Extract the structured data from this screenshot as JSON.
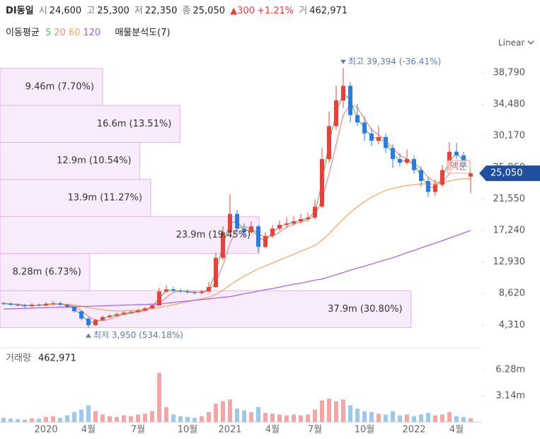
{
  "header": {
    "name": "DI동일",
    "fields": [
      {
        "label": "시",
        "value": "24,600"
      },
      {
        "label": "고",
        "value": "25,300"
      },
      {
        "label": "저",
        "value": "22,350"
      },
      {
        "label": "종",
        "value": "25,050"
      }
    ],
    "change": "▲300",
    "change_pct": "+1.21%",
    "volume": {
      "label": "거",
      "value": "462,971"
    }
  },
  "chart_data": {
    "type": "candlestick",
    "price_scale": "Linear",
    "ma_label": "이동평균",
    "profile_label": "매물분석도(7)",
    "high_note": "최고 39,394 (-36.41%)",
    "low_note": "최저 3,950 (534.18%)",
    "annotation": "액분",
    "up_color": "#e8413c",
    "down_color": "#2c7be0",
    "categories": [
      null,
      null,
      null,
      null,
      null,
      null,
      "2020",
      null,
      null,
      null,
      null,
      null,
      "4월",
      null,
      null,
      null,
      null,
      null,
      null,
      "7월",
      null,
      null,
      null,
      null,
      null,
      null,
      "10월",
      null,
      null,
      null,
      null,
      null,
      "2021",
      null,
      null,
      null,
      null,
      null,
      "4월",
      null,
      null,
      null,
      null,
      null,
      "7월",
      null,
      null,
      null,
      null,
      null,
      null,
      "10월",
      null,
      null,
      null,
      null,
      null,
      null,
      "2022",
      null,
      null,
      null,
      null,
      null,
      "4월",
      null,
      null
    ],
    "ohlc": [
      [
        7300,
        7500,
        7000,
        7200
      ],
      [
        7200,
        7400,
        6950,
        7100
      ],
      [
        7100,
        7300,
        6850,
        7000
      ],
      [
        7000,
        7200,
        6700,
        6900
      ],
      [
        6900,
        7300,
        6800,
        7100
      ],
      [
        7100,
        7250,
        6850,
        7000
      ],
      [
        7000,
        7450,
        6900,
        7200
      ],
      [
        7200,
        7600,
        7050,
        7300
      ],
      [
        7300,
        7500,
        6950,
        7100
      ],
      [
        7100,
        7200,
        6600,
        6800
      ],
      [
        6800,
        6900,
        6000,
        6200
      ],
      [
        6200,
        6300,
        5000,
        5200
      ],
      [
        5200,
        5400,
        3950,
        4300
      ],
      [
        4300,
        5200,
        4200,
        5000
      ],
      [
        5000,
        5600,
        4900,
        5400
      ],
      [
        5400,
        5800,
        5300,
        5600
      ],
      [
        5600,
        6000,
        5500,
        5800
      ],
      [
        5800,
        6200,
        5700,
        6000
      ],
      [
        6000,
        6300,
        5850,
        6100
      ],
      [
        6100,
        6500,
        6000,
        6300
      ],
      [
        6300,
        6800,
        6200,
        6600
      ],
      [
        6600,
        7200,
        6500,
        7000
      ],
      [
        7000,
        9400,
        6900,
        8900
      ],
      [
        8900,
        9700,
        8700,
        9200
      ],
      [
        9200,
        9500,
        8800,
        9000
      ],
      [
        9000,
        9300,
        8700,
        8900
      ],
      [
        8900,
        9200,
        8600,
        8800
      ],
      [
        8800,
        9000,
        8500,
        8700
      ],
      [
        8700,
        9100,
        8600,
        8900
      ],
      [
        8900,
        10200,
        8800,
        9500
      ],
      [
        9500,
        14200,
        9400,
        13500
      ],
      [
        13500,
        17800,
        13200,
        17000
      ],
      [
        17000,
        22200,
        16800,
        19500
      ],
      [
        19500,
        20000,
        17000,
        17500
      ],
      [
        17500,
        18200,
        16500,
        17000
      ],
      [
        17000,
        18500,
        16800,
        17800
      ],
      [
        17800,
        18000,
        14200,
        15000
      ],
      [
        15000,
        17000,
        14800,
        16500
      ],
      [
        16500,
        18000,
        16200,
        17500
      ],
      [
        17500,
        18600,
        17200,
        18000
      ],
      [
        18000,
        19000,
        17600,
        18200
      ],
      [
        18200,
        19200,
        17900,
        18500
      ],
      [
        18500,
        19500,
        18200,
        18800
      ],
      [
        18800,
        19700,
        18500,
        19000
      ],
      [
        19000,
        21500,
        18700,
        20500
      ],
      [
        20500,
        28500,
        20300,
        27000
      ],
      [
        27000,
        33500,
        26500,
        31500
      ],
      [
        31500,
        37000,
        31000,
        35000
      ],
      [
        35000,
        39394,
        34000,
        37000
      ],
      [
        37000,
        37500,
        32000,
        33000
      ],
      [
        33000,
        34500,
        31500,
        32000
      ],
      [
        32000,
        32800,
        29500,
        30500
      ],
      [
        30500,
        31200,
        28800,
        29500
      ],
      [
        29500,
        31500,
        29000,
        30000
      ],
      [
        30000,
        30500,
        27800,
        28500
      ],
      [
        28500,
        29000,
        25800,
        27000
      ],
      [
        27000,
        27800,
        26000,
        26500
      ],
      [
        26500,
        28300,
        26200,
        27000
      ],
      [
        27000,
        27500,
        25000,
        25500
      ],
      [
        25500,
        26000,
        23200,
        24000
      ],
      [
        24000,
        24500,
        21800,
        22500
      ],
      [
        22500,
        24200,
        22000,
        23500
      ],
      [
        23500,
        26200,
        23200,
        25500
      ],
      [
        25500,
        29300,
        25200,
        28000
      ],
      [
        28000,
        29200,
        27000,
        27500
      ],
      [
        27500,
        28000,
        25500,
        26000
      ],
      [
        24600,
        25300,
        22350,
        25050
      ]
    ],
    "ylim": [
      1400,
      41000
    ],
    "yticks": [
      {
        "value": 4310,
        "label": "4,310"
      },
      {
        "value": 8620,
        "label": "8,620"
      },
      {
        "value": 12930,
        "label": "12,930"
      },
      {
        "value": 17240,
        "label": "17,240"
      },
      {
        "value": 21550,
        "label": "21,550"
      },
      {
        "value": 25860,
        "label": "25,860"
      },
      {
        "value": 30170,
        "label": "30,170"
      },
      {
        "value": 34480,
        "label": "34,480"
      },
      {
        "value": 38790,
        "label": "38,790"
      }
    ],
    "series": [
      {
        "name": "5",
        "color": "#5cbf5c",
        "values": [
          7250,
          7150,
          7050,
          6950,
          7000,
          7050,
          7100,
          7250,
          7200,
          6950,
          6500,
          5700,
          4750,
          4650,
          5200,
          5500,
          5700,
          5900,
          6050,
          6200,
          6450,
          6800,
          7950,
          9050,
          9100,
          8950,
          8850,
          8750,
          8800,
          9200,
          11500,
          15250,
          18250,
          18500,
          17250,
          17400,
          16400,
          15750,
          17000,
          17750,
          18100,
          18350,
          18650,
          18900,
          19750,
          23750,
          29250,
          33250,
          36000,
          35000,
          32500,
          31250,
          30000,
          29750,
          29250,
          27750,
          26750,
          26750,
          26250,
          24750,
          23250,
          23000,
          24500,
          26750,
          27750,
          26750,
          25500
        ]
      },
      {
        "name": "20",
        "color": "#f08a84",
        "values": [
          7300,
          7250,
          7150,
          7050,
          7000,
          7000,
          7050,
          7150,
          7200,
          7100,
          6850,
          6300,
          5500,
          5000,
          4900,
          5150,
          5500,
          5750,
          5950,
          6100,
          6300,
          6600,
          7300,
          8100,
          8800,
          9000,
          8950,
          8800,
          8800,
          9000,
          10200,
          12500,
          15500,
          17500,
          17800,
          17500,
          16800,
          16300,
          16500,
          17000,
          17700,
          18100,
          18400,
          18700,
          19300,
          21500,
          25000,
          29000,
          33000,
          34500,
          34000,
          32500,
          31000,
          30300,
          29500,
          28500,
          27500,
          27000,
          26500,
          25600,
          24500,
          23800,
          23800,
          25000,
          26500,
          27000,
          26500
        ]
      },
      {
        "name": "60",
        "color": "#f5a55a",
        "values": [
          null,
          null,
          null,
          null,
          null,
          null,
          7200,
          7200,
          7200,
          7150,
          7050,
          6900,
          6700,
          6550,
          6400,
          6300,
          6250,
          6250,
          6300,
          6350,
          6450,
          6550,
          6700,
          6900,
          7100,
          7300,
          7500,
          7700,
          7900,
          8100,
          8500,
          9100,
          9800,
          10400,
          11000,
          11500,
          12000,
          12400,
          12800,
          13200,
          13600,
          14000,
          14400,
          14800,
          15200,
          15900,
          16800,
          17800,
          18800,
          19700,
          20500,
          21200,
          21800,
          22300,
          22700,
          23000,
          23200,
          23400,
          23500,
          23600,
          23600,
          23600,
          23700,
          24000,
          24200,
          24300,
          24300
        ]
      },
      {
        "name": "120",
        "color": "#a05ef0",
        "values": [
          6500,
          6530,
          6560,
          6600,
          6630,
          6660,
          6690,
          6720,
          6760,
          6790,
          6820,
          6850,
          6880,
          6910,
          6950,
          6980,
          7010,
          7040,
          7070,
          7100,
          7130,
          7170,
          7200,
          7300,
          7400,
          7500,
          7600,
          7700,
          7800,
          7900,
          8000,
          8100,
          8200,
          8400,
          8600,
          8750,
          8950,
          9150,
          9300,
          9500,
          9700,
          9900,
          10050,
          10250,
          10450,
          10600,
          10900,
          11200,
          11500,
          11800,
          12100,
          12350,
          12650,
          12950,
          13250,
          13500,
          13850,
          14200,
          14500,
          14850,
          15200,
          15500,
          15850,
          16200,
          16550,
          16900,
          17240
        ]
      }
    ],
    "volume": {
      "label": "거래량",
      "last_label": "462,971",
      "up_color": "#f4a5a5",
      "down_color": "#9cc8f0",
      "values": [
        500000,
        400000,
        350000,
        300000,
        450000,
        400000,
        600000,
        700000,
        500000,
        800000,
        1200000,
        1500000,
        2000000,
        1300000,
        900000,
        700000,
        600000,
        800000,
        700000,
        900000,
        1000000,
        1300000,
        5900000,
        1800000,
        900000,
        700000,
        600000,
        500000,
        700000,
        1200000,
        2200000,
        2500000,
        2700000,
        1600000,
        1400000,
        1200000,
        1800000,
        1100000,
        1000000,
        900000,
        800000,
        900000,
        800000,
        900000,
        1500000,
        2600000,
        2800000,
        2500000,
        2700000,
        2000000,
        1600000,
        1300000,
        1200000,
        1000000,
        900000,
        1300000,
        800000,
        900000,
        700000,
        900000,
        1100000,
        800000,
        900000,
        1200000,
        700000,
        600000,
        462971
      ],
      "ylim": [
        0,
        8660000
      ],
      "yticks": [
        {
          "value": 3140000,
          "label": "3.14m"
        },
        {
          "value": 6280000,
          "label": "6.28m"
        }
      ]
    },
    "profile": {
      "color": "#f8ebfb",
      "edge_color": "#dfb5ea",
      "bins": [
        3950,
        9013.4,
        14076.9,
        19140.3,
        24203.7,
        29267.1,
        34330.6,
        39394
      ],
      "values": [
        37900000,
        8280000,
        23900000,
        13900000,
        12900000,
        16600000,
        9460000
      ],
      "value_labels": [
        "37.9m (30.80%)",
        "8.28m (6.73%)",
        "23.9m (19.45%)",
        "13.9m (11.27%)",
        "12.9m (10.54%)",
        "16.6m (13.51%)",
        "9.46m (7.70%)"
      ],
      "xlim": [
        0,
        44000000
      ]
    }
  }
}
